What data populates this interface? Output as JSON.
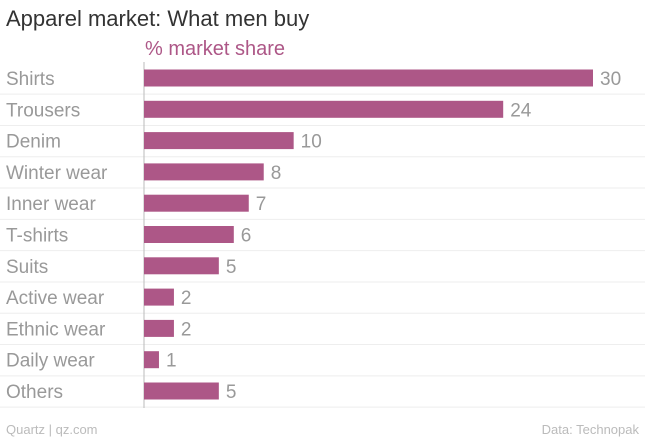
{
  "colors": {
    "bar": "#ad5787",
    "subtitle": "#ad5787",
    "label": "#999999",
    "value": "#999999",
    "grid": "#eeeeee",
    "axis": "#bbbbbb"
  },
  "chart_data": {
    "type": "bar",
    "orientation": "horizontal",
    "title": "Apparel market: What men buy",
    "subtitle": "% market share",
    "categories": [
      "Shirts",
      "Trousers",
      "Denim",
      "Winter wear",
      "Inner wear",
      "T-shirts",
      "Suits",
      "Active wear",
      "Ethnic wear",
      "Daily wear",
      "Others"
    ],
    "values": [
      30,
      24,
      10,
      8,
      7,
      6,
      5,
      2,
      2,
      1,
      5
    ],
    "xlim": [
      0,
      30
    ],
    "grid": true,
    "source": "Data: Technopak",
    "credit": "Quartz | qz.com"
  }
}
